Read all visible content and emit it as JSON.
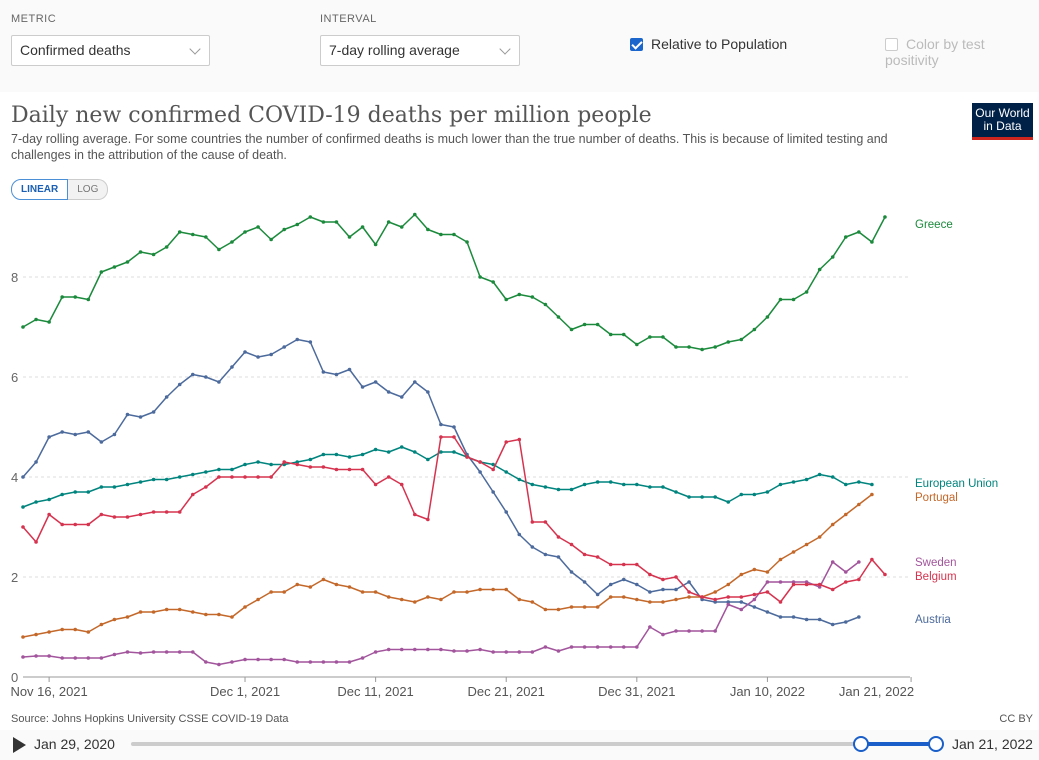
{
  "controls": {
    "metric_label": "METRIC",
    "metric_value": "Confirmed deaths",
    "interval_label": "INTERVAL",
    "interval_value": "7-day rolling average",
    "relative_label": "Relative to Population",
    "relative_checked": true,
    "color_by_label": "Color by test positivity",
    "color_by_checked": false
  },
  "header": {
    "title": "Daily new confirmed COVID-19 deaths per million people",
    "subtitle": "7-day rolling average. For some countries the number of confirmed deaths is much lower than the true number of deaths. This is because of limited testing and challenges in the attribution of the cause of death.",
    "logo_line1": "Our World",
    "logo_line2": "in Data"
  },
  "scale_toggle": {
    "linear": "LINEAR",
    "log": "LOG",
    "active": "linear"
  },
  "footer": {
    "source": "Source: Johns Hopkins University CSSE COVID-19 Data",
    "license": "CC BY"
  },
  "timeline": {
    "start": "Jan 29, 2020",
    "end": "Jan 21, 2022"
  },
  "chart_data": {
    "type": "line",
    "title": "Daily new confirmed COVID-19 deaths per million people",
    "x_start": "2021-11-14",
    "x_end": "2022-01-21",
    "x_ticks": [
      {
        "day": 2,
        "label": "Nov 16, 2021"
      },
      {
        "day": 17,
        "label": "Dec 1, 2021"
      },
      {
        "day": 27,
        "label": "Dec 11, 2021"
      },
      {
        "day": 37,
        "label": "Dec 21, 2021"
      },
      {
        "day": 47,
        "label": "Dec 31, 2021"
      },
      {
        "day": 57,
        "label": "Jan 10, 2022"
      },
      {
        "day": 68,
        "label": "Jan 21, 2022"
      }
    ],
    "ylim": [
      0,
      9.2
    ],
    "y_ticks": [
      0,
      2,
      4,
      6,
      8
    ],
    "grid": "horizontal dashed",
    "legend": "line-end labels",
    "series": [
      {
        "name": "Greece",
        "color": "#1b8a3c",
        "values": [
          7.0,
          7.15,
          7.1,
          7.6,
          7.6,
          7.55,
          8.1,
          8.2,
          8.3,
          8.5,
          8.45,
          8.6,
          8.9,
          8.85,
          8.8,
          8.55,
          8.7,
          8.9,
          9.0,
          8.75,
          8.95,
          9.05,
          9.2,
          9.1,
          9.1,
          8.8,
          9.0,
          8.65,
          9.1,
          9.0,
          9.25,
          8.95,
          8.85,
          8.85,
          8.7,
          8.0,
          7.9,
          7.55,
          7.65,
          7.6,
          7.45,
          7.2,
          6.95,
          7.05,
          7.05,
          6.85,
          6.85,
          6.65,
          6.8,
          6.8,
          6.6,
          6.6,
          6.55,
          6.6,
          6.7,
          6.75,
          6.95,
          7.2,
          7.55,
          7.55,
          7.7,
          8.15,
          8.4,
          8.8,
          8.9,
          8.7,
          9.2
        ]
      },
      {
        "name": "Austria",
        "color": "#4c6a9c",
        "values": [
          4.0,
          4.3,
          4.8,
          4.9,
          4.85,
          4.9,
          4.7,
          4.85,
          5.25,
          5.2,
          5.3,
          5.6,
          5.85,
          6.05,
          6.0,
          5.9,
          6.2,
          6.5,
          6.4,
          6.45,
          6.6,
          6.75,
          6.7,
          6.1,
          6.05,
          6.15,
          5.8,
          5.9,
          5.7,
          5.6,
          5.9,
          5.7,
          5.05,
          5.0,
          4.45,
          4.1,
          3.7,
          3.3,
          2.85,
          2.6,
          2.45,
          2.4,
          2.1,
          1.9,
          1.65,
          1.85,
          1.95,
          1.85,
          1.7,
          1.75,
          1.75,
          1.9,
          1.55,
          1.5,
          1.5,
          1.5,
          1.4,
          1.3,
          1.2,
          1.2,
          1.15,
          1.15,
          1.05,
          1.1,
          1.2
        ]
      },
      {
        "name": "European Union",
        "color": "#00847e",
        "values": [
          3.4,
          3.5,
          3.55,
          3.65,
          3.7,
          3.7,
          3.8,
          3.8,
          3.85,
          3.9,
          3.95,
          3.95,
          4.0,
          4.05,
          4.1,
          4.15,
          4.15,
          4.25,
          4.3,
          4.25,
          4.25,
          4.3,
          4.35,
          4.45,
          4.45,
          4.4,
          4.45,
          4.55,
          4.5,
          4.6,
          4.5,
          4.35,
          4.5,
          4.5,
          4.4,
          4.3,
          4.25,
          4.1,
          3.95,
          3.85,
          3.8,
          3.75,
          3.75,
          3.85,
          3.9,
          3.9,
          3.85,
          3.85,
          3.8,
          3.8,
          3.7,
          3.6,
          3.6,
          3.6,
          3.5,
          3.65,
          3.65,
          3.7,
          3.85,
          3.9,
          3.95,
          4.05,
          4.0,
          3.85,
          3.9,
          3.85
        ]
      },
      {
        "name": "Portugal",
        "color": "#c4682a",
        "values": [
          0.8,
          0.85,
          0.9,
          0.95,
          0.95,
          0.9,
          1.05,
          1.15,
          1.2,
          1.3,
          1.3,
          1.35,
          1.35,
          1.3,
          1.25,
          1.25,
          1.2,
          1.4,
          1.55,
          1.7,
          1.7,
          1.85,
          1.8,
          1.95,
          1.85,
          1.8,
          1.7,
          1.7,
          1.6,
          1.55,
          1.5,
          1.6,
          1.55,
          1.7,
          1.7,
          1.75,
          1.75,
          1.75,
          1.55,
          1.5,
          1.35,
          1.35,
          1.4,
          1.4,
          1.4,
          1.6,
          1.6,
          1.55,
          1.5,
          1.5,
          1.55,
          1.6,
          1.6,
          1.7,
          1.85,
          2.05,
          2.15,
          2.1,
          2.35,
          2.5,
          2.65,
          2.8,
          3.05,
          3.25,
          3.45,
          3.65
        ]
      },
      {
        "name": "Sweden",
        "color": "#a2559c",
        "values": [
          0.4,
          0.42,
          0.42,
          0.38,
          0.38,
          0.38,
          0.38,
          0.45,
          0.5,
          0.48,
          0.5,
          0.5,
          0.5,
          0.5,
          0.3,
          0.25,
          0.3,
          0.35,
          0.35,
          0.35,
          0.35,
          0.3,
          0.3,
          0.3,
          0.3,
          0.3,
          0.38,
          0.5,
          0.55,
          0.55,
          0.55,
          0.55,
          0.55,
          0.52,
          0.52,
          0.55,
          0.5,
          0.5,
          0.5,
          0.5,
          0.6,
          0.52,
          0.6,
          0.6,
          0.6,
          0.6,
          0.6,
          0.6,
          1.0,
          0.85,
          0.92,
          0.92,
          0.92,
          0.92,
          1.45,
          1.35,
          1.55,
          1.9,
          1.9,
          1.9,
          1.9,
          1.8,
          2.3,
          2.1,
          2.3
        ]
      },
      {
        "name": "Belgium",
        "color": "#d6334f",
        "values": [
          3.0,
          2.7,
          3.25,
          3.05,
          3.05,
          3.05,
          3.25,
          3.2,
          3.2,
          3.25,
          3.3,
          3.3,
          3.3,
          3.65,
          3.8,
          4.0,
          4.0,
          4.0,
          4.0,
          4.0,
          4.3,
          4.25,
          4.2,
          4.2,
          4.15,
          4.15,
          4.15,
          3.85,
          4.0,
          3.85,
          3.25,
          3.15,
          4.8,
          4.8,
          4.4,
          4.3,
          4.15,
          4.7,
          4.75,
          3.1,
          3.1,
          2.8,
          2.65,
          2.45,
          2.4,
          2.25,
          2.25,
          2.25,
          2.05,
          1.95,
          2.0,
          1.7,
          1.6,
          1.55,
          1.6,
          1.6,
          1.65,
          1.7,
          1.5,
          1.85,
          1.85,
          1.85,
          1.75,
          1.9,
          1.95,
          2.35,
          2.05
        ]
      }
    ]
  }
}
